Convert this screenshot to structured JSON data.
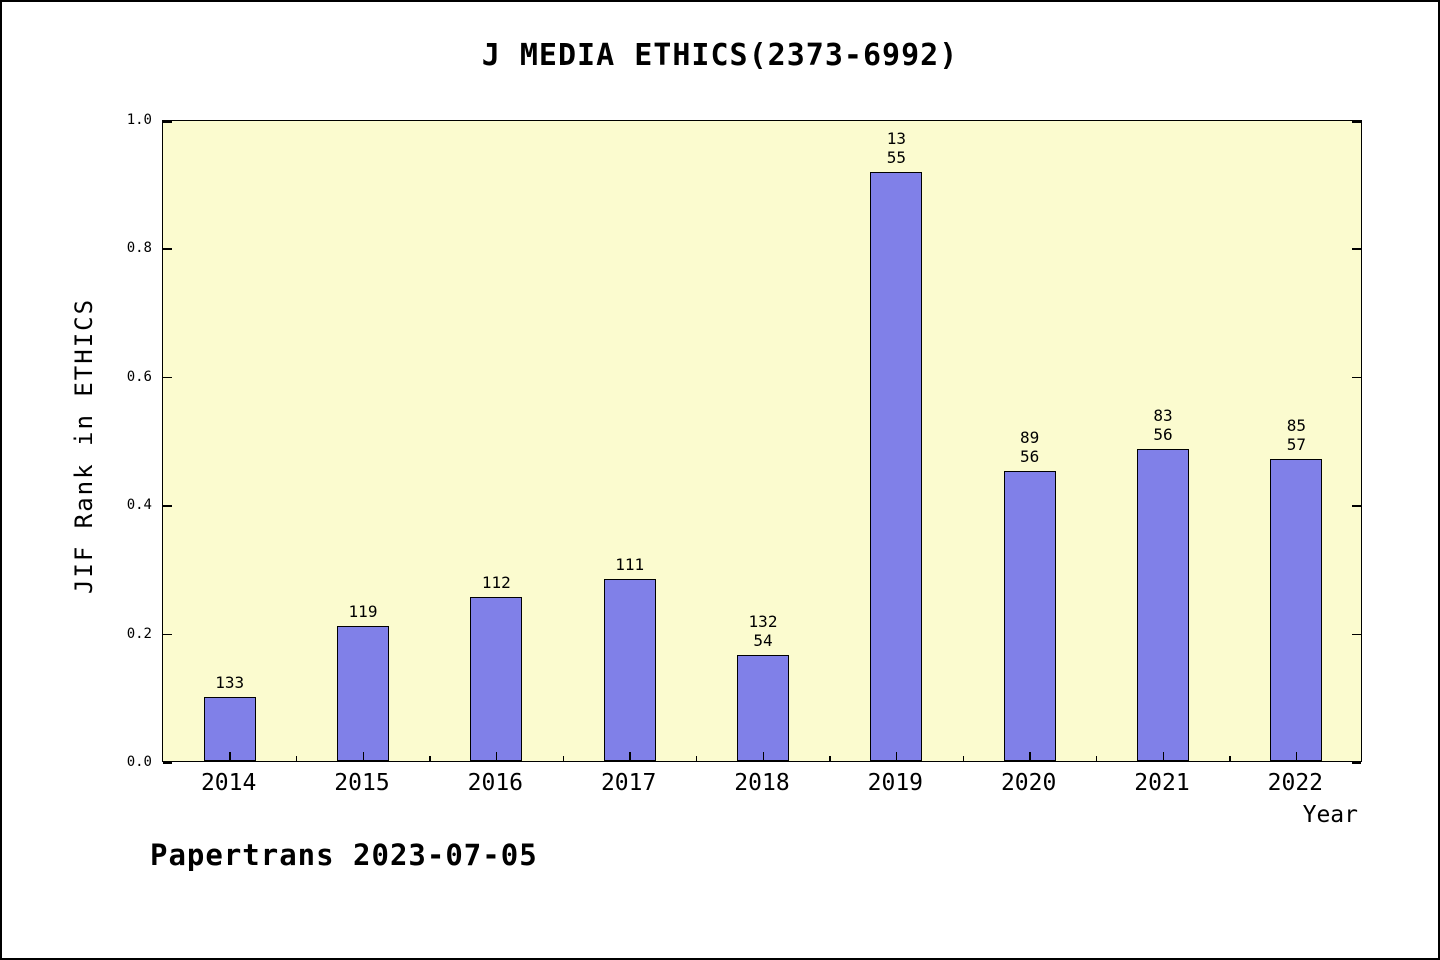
{
  "chart_data": {
    "type": "bar",
    "title": "J MEDIA ETHICS(2373-6992)",
    "ylabel": "JIF Rank in ETHICS",
    "xlabel": "Year",
    "categories": [
      "2014",
      "2015",
      "2016",
      "2017",
      "2018",
      "2019",
      "2020",
      "2021",
      "2022"
    ],
    "values": [
      0.1,
      0.21,
      0.255,
      0.283,
      0.165,
      0.918,
      0.451,
      0.486,
      0.471
    ],
    "bar_labels": [
      [
        "133"
      ],
      [
        "119"
      ],
      [
        "112"
      ],
      [
        "111"
      ],
      [
        "132",
        "54"
      ],
      [
        "13",
        "55"
      ],
      [
        "89",
        "56"
      ],
      [
        "83",
        "56"
      ],
      [
        "85",
        "57"
      ]
    ],
    "ylim": [
      0.0,
      1.0
    ],
    "yticks": [
      0.0,
      0.2,
      0.4,
      0.6,
      0.8,
      1.0
    ],
    "ytick_labels": [
      "0.0",
      "0.2",
      "0.4",
      "0.6",
      "0.8",
      "1.0"
    ],
    "grid": false,
    "legend": "none",
    "bar_color": "#8080e8",
    "bar_border_color": "#000000",
    "plot_bg": "#fbfbcf",
    "footer": "Papertrans 2023-07-05"
  }
}
